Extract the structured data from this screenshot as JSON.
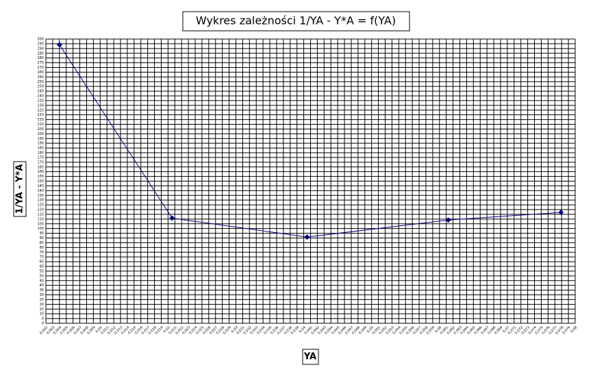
{
  "chart_data": {
    "type": "line",
    "title": "Wykres zależności 1/YA - Y*A = f(YA)",
    "x_label": "YA",
    "y_label": "1/YA - Y*A",
    "x": [
      0.004,
      0.0206,
      0.0405,
      0.0613,
      0.0779
    ],
    "values": [
      294,
      111,
      91,
      109,
      117
    ],
    "color": "#000080",
    "grid": true,
    "xlim": [
      0.002,
      0.08
    ],
    "xticks": [
      {
        "value": 0.002,
        "label": "0,002"
      },
      {
        "value": 0.003,
        "label": "0,003"
      },
      {
        "value": 0.004,
        "label": "0,004"
      },
      {
        "value": 0.005,
        "label": "0,005"
      },
      {
        "value": 0.006,
        "label": "0,006"
      },
      {
        "value": 0.007,
        "label": "0,007"
      },
      {
        "value": 0.008,
        "label": "0,008"
      },
      {
        "value": 0.009,
        "label": "0,009"
      },
      {
        "value": 0.01,
        "label": "0,01"
      },
      {
        "value": 0.011,
        "label": "0,011"
      },
      {
        "value": 0.012,
        "label": "0,012"
      },
      {
        "value": 0.013,
        "label": "0,013"
      },
      {
        "value": 0.014,
        "label": "0,014"
      },
      {
        "value": 0.015,
        "label": "0,015"
      },
      {
        "value": 0.016,
        "label": "0,016"
      },
      {
        "value": 0.017,
        "label": "0,017"
      },
      {
        "value": 0.018,
        "label": "0,018"
      },
      {
        "value": 0.019,
        "label": "0,019"
      },
      {
        "value": 0.02,
        "label": "0,02"
      },
      {
        "value": 0.021,
        "label": "0,021"
      },
      {
        "value": 0.022,
        "label": "0,022"
      },
      {
        "value": 0.023,
        "label": "0,023"
      },
      {
        "value": 0.024,
        "label": "0,024"
      },
      {
        "value": 0.025,
        "label": "0,025"
      },
      {
        "value": 0.026,
        "label": "0,026"
      },
      {
        "value": 0.027,
        "label": "0,027"
      },
      {
        "value": 0.028,
        "label": "0,028"
      },
      {
        "value": 0.029,
        "label": "0,029"
      },
      {
        "value": 0.03,
        "label": "0,03"
      },
      {
        "value": 0.031,
        "label": "0,031"
      },
      {
        "value": 0.032,
        "label": "0,032"
      },
      {
        "value": 0.033,
        "label": "0,033"
      },
      {
        "value": 0.034,
        "label": "0,034"
      },
      {
        "value": 0.035,
        "label": "0,035"
      },
      {
        "value": 0.036,
        "label": "0,036"
      },
      {
        "value": 0.037,
        "label": "0,037"
      },
      {
        "value": 0.038,
        "label": "0,038"
      },
      {
        "value": 0.039,
        "label": "0,039"
      },
      {
        "value": 0.04,
        "label": "0,04"
      },
      {
        "value": 0.041,
        "label": "0,041"
      },
      {
        "value": 0.042,
        "label": "0,042"
      },
      {
        "value": 0.043,
        "label": "0,043"
      },
      {
        "value": 0.044,
        "label": "0,044"
      },
      {
        "value": 0.045,
        "label": "0,045"
      },
      {
        "value": 0.046,
        "label": "0,046"
      },
      {
        "value": 0.047,
        "label": "0,047"
      },
      {
        "value": 0.048,
        "label": "0,048"
      },
      {
        "value": 0.049,
        "label": "0,049"
      },
      {
        "value": 0.05,
        "label": "0,05"
      },
      {
        "value": 0.051,
        "label": "0,051"
      },
      {
        "value": 0.052,
        "label": "0,052"
      },
      {
        "value": 0.053,
        "label": "0,053"
      },
      {
        "value": 0.054,
        "label": "0,054"
      },
      {
        "value": 0.055,
        "label": "0,055"
      },
      {
        "value": 0.056,
        "label": "0,056"
      },
      {
        "value": 0.057,
        "label": "0,057"
      },
      {
        "value": 0.058,
        "label": "0,058"
      },
      {
        "value": 0.059,
        "label": "0,059"
      },
      {
        "value": 0.06,
        "label": "0,06"
      },
      {
        "value": 0.061,
        "label": "0,061"
      },
      {
        "value": 0.062,
        "label": "0,062"
      },
      {
        "value": 0.063,
        "label": "0,063"
      },
      {
        "value": 0.064,
        "label": "0,064"
      },
      {
        "value": 0.065,
        "label": "0,065"
      },
      {
        "value": 0.066,
        "label": "0,066"
      },
      {
        "value": 0.067,
        "label": "0,067"
      },
      {
        "value": 0.068,
        "label": "0,068"
      },
      {
        "value": 0.069,
        "label": "0,069"
      },
      {
        "value": 0.07,
        "label": "0,07"
      },
      {
        "value": 0.071,
        "label": "0,071"
      },
      {
        "value": 0.072,
        "label": "0,072"
      },
      {
        "value": 0.073,
        "label": "0,073"
      },
      {
        "value": 0.074,
        "label": "0,074"
      },
      {
        "value": 0.075,
        "label": "0,075"
      },
      {
        "value": 0.076,
        "label": "0,076"
      },
      {
        "value": 0.077,
        "label": "0,077"
      },
      {
        "value": 0.078,
        "label": "0,078"
      },
      {
        "value": 0.079,
        "label": "0,079"
      },
      {
        "value": 0.08,
        "label": "0,08"
      }
    ],
    "ylim": [
      0,
      300
    ],
    "yticks": [
      0,
      5,
      10,
      15,
      20,
      25,
      30,
      35,
      40,
      45,
      50,
      55,
      60,
      65,
      70,
      75,
      80,
      85,
      90,
      95,
      100,
      105,
      110,
      115,
      120,
      125,
      130,
      135,
      140,
      145,
      150,
      155,
      160,
      165,
      170,
      175,
      180,
      185,
      190,
      195,
      200,
      205,
      210,
      215,
      220,
      225,
      230,
      235,
      240,
      245,
      250,
      255,
      260,
      265,
      270,
      275,
      280,
      285,
      290,
      295,
      300
    ]
  }
}
